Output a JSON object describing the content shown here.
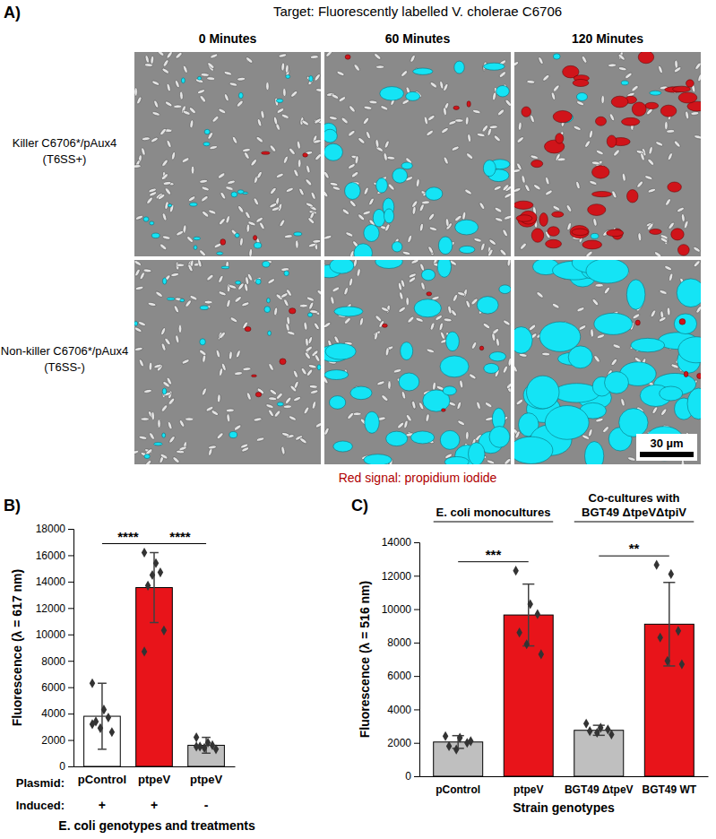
{
  "panel_a": {
    "label": "A)",
    "title": "Target: Fluorescently labelled V. cholerae C6706",
    "columns": [
      "0 Minutes",
      "60 Minutes",
      "120 Minutes"
    ],
    "rows": [
      [
        "Killer C6706*/pAux4",
        "(T6SS+)"
      ],
      [
        "Non-killer C6706*/pAux4",
        "(T6SS-)"
      ]
    ],
    "scale_bar": "30 µm",
    "footer": "Red signal: propidium iodide"
  },
  "chart_data": [
    {
      "type": "bar",
      "panel_label": "B)",
      "ylabel": "Fluorescence (λ = 617 nm)",
      "xlabel": "E. coli genotypes and treatments",
      "category_title": "Plasmid:",
      "categories": [
        "pControl",
        "ptpeV",
        "ptpeV"
      ],
      "treatment": {
        "label": "Induced:",
        "values": [
          "+",
          "+",
          "-"
        ]
      },
      "values": [
        3800,
        13550,
        1600
      ],
      "error": [
        2500,
        2650,
        600
      ],
      "points": [
        [
          6300,
          4300,
          3700,
          3400,
          2900,
          2600,
          3200
        ],
        [
          16200,
          15400,
          14700,
          13700,
          14500,
          10300,
          8700
        ],
        [
          2200,
          1800,
          1600,
          1500,
          1400,
          1300,
          1500
        ]
      ],
      "colors": [
        "#ffffff",
        "#e8141a",
        "#bfbfbf"
      ],
      "significance": [
        "****",
        "****"
      ],
      "ylim": [
        0,
        18000
      ],
      "yticks": [
        0,
        2000,
        4000,
        6000,
        8000,
        10000,
        12000,
        14000,
        16000,
        18000
      ]
    },
    {
      "type": "bar",
      "panel_label": "C)",
      "ylabel": "Fluorescence (λ = 516 nm)",
      "xlabel": "Strain genotypes",
      "categories": [
        "pControl",
        "ptpeV",
        "BGT49 ΔtpeV",
        "BGT49 WT"
      ],
      "values": [
        2050,
        9650,
        2750,
        9100
      ],
      "error": [
        380,
        1850,
        300,
        2500
      ],
      "points": [
        [
          2400,
          2300,
          2000,
          1800,
          1600,
          2100
        ],
        [
          12300,
          10300,
          9700,
          8600,
          7900,
          7300
        ],
        [
          3150,
          2900,
          2800,
          2700,
          2600,
          2500
        ],
        [
          12650,
          12100,
          8700,
          8300,
          6900,
          6700
        ]
      ],
      "colors": [
        "#bfbfbf",
        "#e8141a",
        "#bfbfbf",
        "#e8141a"
      ],
      "groups": [
        {
          "label": [
            "E. coli monocultures"
          ],
          "categories": [
            "pControl",
            "ptpeV"
          ],
          "significance": "***"
        },
        {
          "label": [
            "Co-cultures with",
            "BGT49 ΔtpeVΔtpiV"
          ],
          "categories": [
            "BGT49 ΔtpeV",
            "BGT49 WT"
          ],
          "significance": "**"
        }
      ],
      "ylim": [
        0,
        14000
      ],
      "yticks": [
        0,
        2000,
        4000,
        6000,
        8000,
        10000,
        12000,
        14000
      ]
    }
  ]
}
